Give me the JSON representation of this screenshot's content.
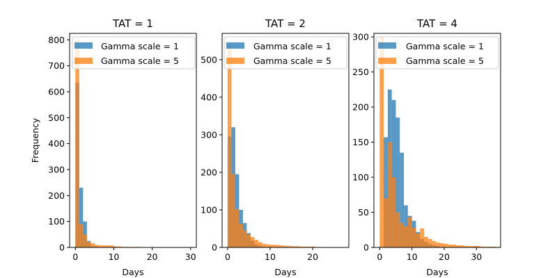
{
  "figure": {
    "background": "#ffffff",
    "series_colors": {
      "gamma_1": "#1f77b4",
      "gamma_5": "#ff7f0e"
    },
    "bar_opacity": 0.75
  },
  "chart_data": [
    {
      "type": "histogram",
      "title": "TAT = 1",
      "xlabel": "Days",
      "ylabel": "Frequency",
      "xlim": [
        -1.5,
        31.5
      ],
      "ylim": [
        0,
        825
      ],
      "xticks": [
        0,
        10,
        20,
        30
      ],
      "yticks": [
        0,
        100,
        200,
        300,
        400,
        500,
        600,
        700,
        800
      ],
      "legend_position": "top-left",
      "series": [
        {
          "name": "Gamma scale = 1",
          "color": "#1f77b4",
          "bin_start": 0,
          "bin_width": 1.0,
          "counts": [
            635,
            230,
            100,
            25,
            5,
            3,
            1,
            1
          ]
        },
        {
          "name": "Gamma scale = 5",
          "color": "#ff7f0e",
          "bin_start": 0,
          "bin_width": 1.0,
          "counts": [
            800,
            90,
            50,
            22,
            16,
            10,
            8,
            8,
            8,
            8,
            4,
            3,
            2,
            2,
            2,
            2,
            2,
            1,
            1,
            1,
            1,
            1
          ]
        }
      ]
    },
    {
      "type": "histogram",
      "title": "TAT = 2",
      "xlabel": "Days",
      "ylabel": "",
      "xlim": [
        -1.3,
        28.5
      ],
      "ylim": [
        0,
        570
      ],
      "xticks": [
        0,
        10,
        20
      ],
      "yticks": [
        0,
        100,
        200,
        300,
        400,
        500
      ],
      "legend_position": "top-left",
      "series": [
        {
          "name": "Gamma scale = 1",
          "color": "#1f77b4",
          "bin_start": 0,
          "bin_width": 0.9,
          "counts": [
            295,
            320,
            195,
            100,
            65,
            38,
            18,
            8,
            4,
            2,
            1,
            1
          ]
        },
        {
          "name": "Gamma scale = 5",
          "color": "#ff7f0e",
          "bin_start": 0,
          "bin_width": 0.9,
          "counts": [
            540,
            195,
            102,
            63,
            45,
            35,
            28,
            20,
            14,
            10,
            8,
            7,
            7,
            6,
            5,
            4,
            4,
            3,
            3,
            2,
            2,
            2,
            2,
            1,
            1,
            1
          ]
        }
      ]
    },
    {
      "type": "histogram",
      "title": "TAT = 4",
      "xlabel": "Days",
      "ylabel": "",
      "xlim": [
        -1.8,
        37.5
      ],
      "ylim": [
        0,
        305
      ],
      "xticks": [
        0,
        10,
        20,
        30
      ],
      "yticks": [
        0,
        50,
        100,
        150,
        200,
        250,
        300
      ],
      "legend_position": "top-left",
      "series": [
        {
          "name": "Gamma scale = 1",
          "color": "#1f77b4",
          "bin_start": 0,
          "bin_width": 1.25,
          "counts": [
            0,
            157,
            225,
            210,
            185,
            135,
            60,
            45,
            38,
            22,
            12,
            8,
            5,
            3,
            2
          ]
        },
        {
          "name": "Gamma scale = 5",
          "color": "#ff7f0e",
          "bin_start": 0,
          "bin_width": 1.25,
          "counts": [
            300,
            70,
            150,
            100,
            50,
            35,
            30,
            43,
            28,
            20,
            27,
            15,
            12,
            9,
            7,
            6,
            5,
            4,
            4,
            3,
            3,
            2,
            2,
            2,
            2,
            1,
            1,
            1,
            1
          ]
        }
      ]
    }
  ]
}
